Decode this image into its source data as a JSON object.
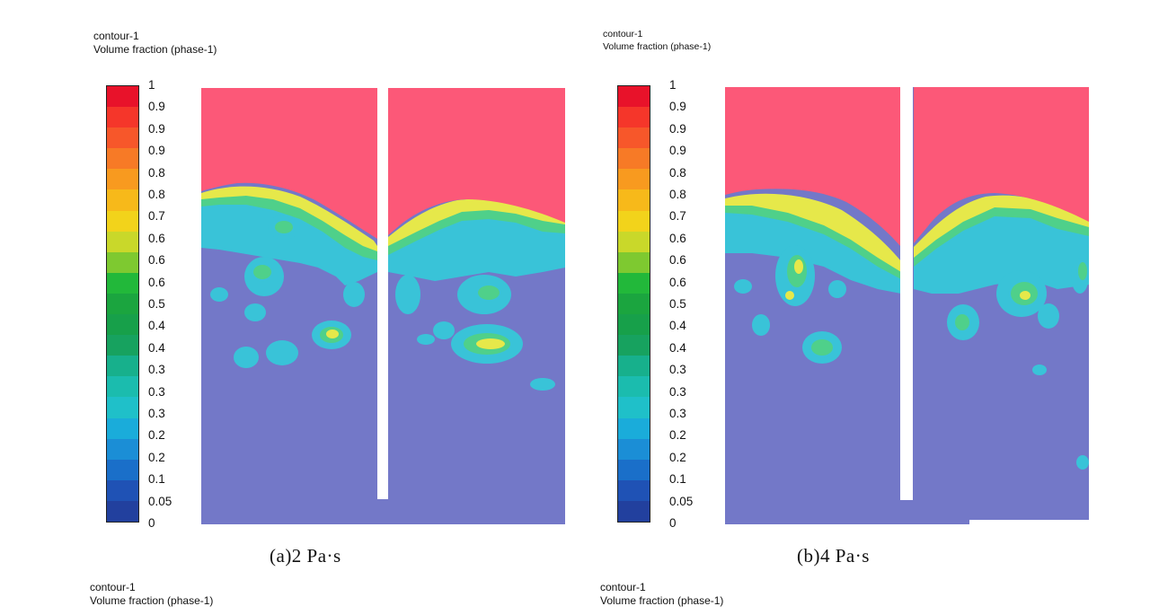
{
  "panels": [
    {
      "id": "a",
      "header_line1": "contour-1",
      "header_line2": "Volume fraction (phase-1)",
      "caption": "(a)2 Pa·s"
    },
    {
      "id": "b",
      "header_line1": "contour-1",
      "header_line2": "Volume fraction (phase-1)",
      "caption": "(b)4 Pa·s"
    }
  ],
  "bottom_headers": [
    {
      "line1": "contour-1",
      "line2": "Volume fraction (phase-1)"
    },
    {
      "line1": "contour-1",
      "line2": "Volume fraction (phase-1)"
    }
  ],
  "colorbar": {
    "tick_labels": [
      "1",
      "0.9",
      "0.9",
      "0.9",
      "0.8",
      "0.8",
      "0.7",
      "0.6",
      "0.6",
      "0.6",
      "0.5",
      "0.4",
      "0.4",
      "0.3",
      "0.3",
      "0.3",
      "0.2",
      "0.2",
      "0.1",
      "0.05",
      "0"
    ],
    "colors": [
      "#e8122a",
      "#f5362a",
      "#f7572a",
      "#f77a26",
      "#f89a1f",
      "#f7b91a",
      "#f2d31b",
      "#c9d82a",
      "#7ec930",
      "#22b83a",
      "#1ba53f",
      "#17a04a",
      "#17a25f",
      "#17b08c",
      "#1bbcae",
      "#1fc0c9",
      "#1aacda",
      "#1b8ed6",
      "#1a6fc9",
      "#1f52b5",
      "#22409e"
    ]
  },
  "colors": {
    "top_phase": "#fc5878",
    "bottom_phase": "#7378c8",
    "interface_yellow": "#e6e84a",
    "interface_green": "#4fd08a",
    "interface_cyan": "#39c3d8"
  }
}
